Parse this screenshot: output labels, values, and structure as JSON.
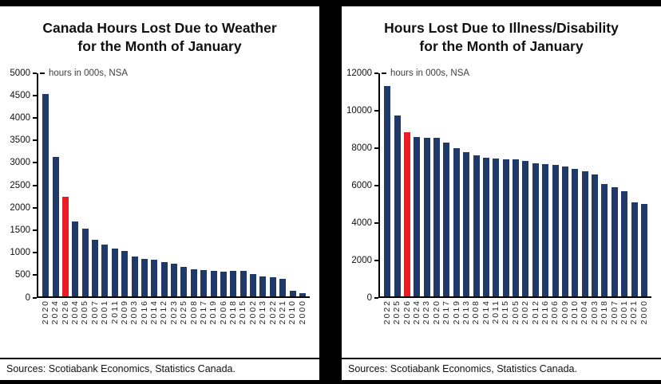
{
  "page": {
    "background": "#ffffff",
    "frame_color": "#000000"
  },
  "chart_data": [
    {
      "type": "bar",
      "panel": "left",
      "title": "Canada Hours Lost Due to Weather for the Month of January",
      "title_lines": [
        "Canada Hours Lost Due to Weather",
        "for the Month of January"
      ],
      "axis_note": "hours in 000s, NSA",
      "xlabel": "",
      "ylabel": "hours in 000s, NSA",
      "ylim": [
        0,
        5000
      ],
      "ytick_step": 500,
      "grid": false,
      "legend": "none",
      "bar_color": "#1f3a68",
      "highlight_color": "#ec1c24",
      "highlight_category": "2026",
      "categories": [
        "2020",
        "2024",
        "2026",
        "2004",
        "2005",
        "2007",
        "2001",
        "2011",
        "2009",
        "2003",
        "2016",
        "2014",
        "2012",
        "2023",
        "2025",
        "2008",
        "2017",
        "2019",
        "2006",
        "2018",
        "2015",
        "2002",
        "2013",
        "2022",
        "2021",
        "2010",
        "2000"
      ],
      "values": [
        4500,
        3100,
        2200,
        1650,
        1500,
        1250,
        1150,
        1060,
        1010,
        875,
        820,
        800,
        760,
        710,
        650,
        600,
        570,
        560,
        540,
        560,
        550,
        480,
        440,
        420,
        380,
        110,
        70
      ],
      "source": "Sources: Scotiabank Economics, Statistics Canada."
    },
    {
      "type": "bar",
      "panel": "right",
      "title": "Hours Lost Due to Illness/Disability for the Month of January",
      "title_lines": [
        "Hours Lost Due to Illness/Disability",
        "for the Month of January"
      ],
      "axis_note": "hours in 000s, NSA",
      "xlabel": "",
      "ylabel": "hours in 000s, NSA",
      "ylim": [
        0,
        12000
      ],
      "ytick_step": 2000,
      "grid": false,
      "legend": "none",
      "bar_color": "#1f3a68",
      "highlight_color": "#ec1c24",
      "highlight_category": "2026",
      "categories": [
        "2022",
        "2025",
        "2026",
        "2024",
        "2023",
        "2020",
        "2017",
        "2019",
        "2013",
        "2008",
        "2014",
        "2011",
        "2015",
        "2005",
        "2002",
        "2012",
        "2016",
        "2006",
        "2009",
        "2010",
        "2004",
        "2003",
        "2018",
        "2007",
        "2001",
        "2021",
        "2000"
      ],
      "values": [
        11200,
        9650,
        8750,
        8500,
        8450,
        8450,
        8200,
        7900,
        7700,
        7500,
        7400,
        7350,
        7300,
        7300,
        7200,
        7100,
        7050,
        7000,
        6900,
        6800,
        6650,
        6500,
        6000,
        5800,
        5600,
        5000,
        4900
      ],
      "source": "Sources: Scotiabank Economics, Statistics Canada."
    }
  ]
}
